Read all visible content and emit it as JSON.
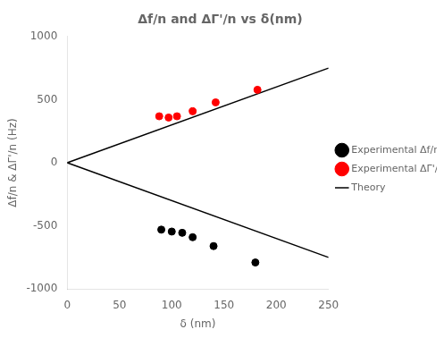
{
  "chart_data": {
    "type": "scatter",
    "title": "Δf/n and ΔΓ'/n vs δ(nm)",
    "xlabel": "δ (nm)",
    "ylabel": "Δf/n & ΔΓ'/n (Hz)",
    "xlim": [
      0,
      250
    ],
    "ylim": [
      -1000,
      1000
    ],
    "xticks": [
      0,
      50,
      100,
      150,
      200,
      250
    ],
    "yticks": [
      -1000,
      -500,
      0,
      500,
      1000
    ],
    "grid": false,
    "legend": "right",
    "series": [
      {
        "name": "Experimental Δf/n",
        "type": "scatter",
        "marker": "o",
        "color": "#000000",
        "x": [
          90,
          100,
          110,
          120,
          140,
          180
        ],
        "values": [
          -530,
          -545,
          -555,
          -590,
          -660,
          -790
        ]
      },
      {
        "name": "Experimental ΔΓ'/n",
        "type": "scatter",
        "marker": "o",
        "color": "#ff0000",
        "x": [
          88,
          97,
          105,
          120,
          142,
          182
        ],
        "values": [
          368,
          358,
          368,
          408,
          478,
          578
        ]
      },
      {
        "name": "Theory",
        "type": "line",
        "line_style": "solid",
        "color": "#000000",
        "x": [
          0,
          250
        ],
        "values": [
          0,
          750
        ]
      },
      {
        "name": "Theory",
        "type": "line",
        "line_style": "solid",
        "color": "#000000",
        "x": [
          0,
          250
        ],
        "values": [
          0,
          -750
        ]
      }
    ]
  }
}
